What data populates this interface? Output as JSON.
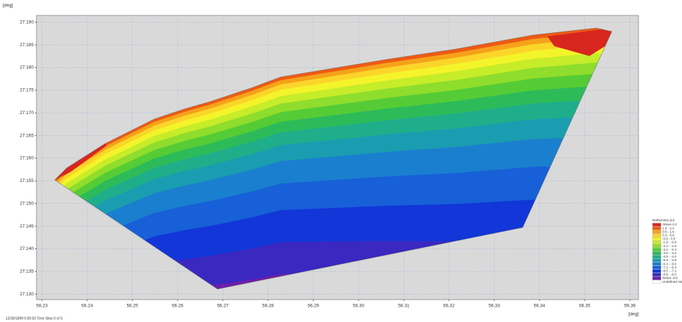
{
  "chart_data": {
    "type": "contour",
    "y_label": "[deg]",
    "x_label": "[deg]",
    "xlim": [
      56.2288,
      56.3619
    ],
    "ylim": [
      27.1288,
      27.1915
    ],
    "xticks": [
      56.23,
      56.24,
      56.25,
      56.26,
      56.27,
      56.28,
      56.29,
      {
        "value": 56.3,
        "label": "56.30"
      },
      56.31,
      56.32,
      56.33,
      56.34,
      56.35,
      56.36
    ],
    "yticks": [
      {
        "value": 27.13,
        "label": "27.130"
      },
      27.135,
      {
        "value": 27.14,
        "label": "27.140"
      },
      27.145,
      {
        "value": 27.15,
        "label": "27.150"
      },
      27.155,
      {
        "value": 27.16,
        "label": "27.160"
      },
      27.165,
      {
        "value": 27.17,
        "label": "27.170"
      },
      27.175,
      {
        "value": 27.18,
        "label": "27.180"
      },
      27.185,
      {
        "value": 27.19,
        "label": "27.190"
      }
    ],
    "grid": true,
    "legend": {
      "title": "Bathymetry [m]",
      "position": "lower right",
      "items": [
        {
          "label": "Above 2.4",
          "color": "#d7261e"
        },
        {
          "label": "1.6 - 2.4",
          "color": "#ee5a14"
        },
        {
          "label": "0.8 - 1.6",
          "color": "#f5a21a"
        },
        {
          "label": "0.0 - 0.8",
          "color": "#fbd52a"
        },
        {
          "label": "-0.8 - 0.0",
          "color": "#f4f42a"
        },
        {
          "label": "-1.6 - -0.8",
          "color": "#c6ec2a"
        },
        {
          "label": "-2.4 - -1.6",
          "color": "#8fdd2c"
        },
        {
          "label": "-3.2 - -2.4",
          "color": "#55cc35"
        },
        {
          "label": "-4.0 - -3.2",
          "color": "#2dbb5a"
        },
        {
          "label": "-4.8 - -4.0",
          "color": "#1fae8a"
        },
        {
          "label": "-5.6 - -4.8",
          "color": "#1a9db0"
        },
        {
          "label": "-6.4 - -5.6",
          "color": "#1a7fce"
        },
        {
          "label": "-7.2 - -6.4",
          "color": "#1760d8"
        },
        {
          "label": "-8.0 - -7.2",
          "color": "#1236d8"
        },
        {
          "label": "-8.8 - -8.0",
          "color": "#3a28c0"
        },
        {
          "label": "Below -8.8",
          "color": "#6a1fa8"
        },
        {
          "label": "Undefined Value",
          "color": "#ffffff"
        }
      ]
    },
    "footer": "12/30/1899 0:00:00  Time Step 0 of 0"
  }
}
